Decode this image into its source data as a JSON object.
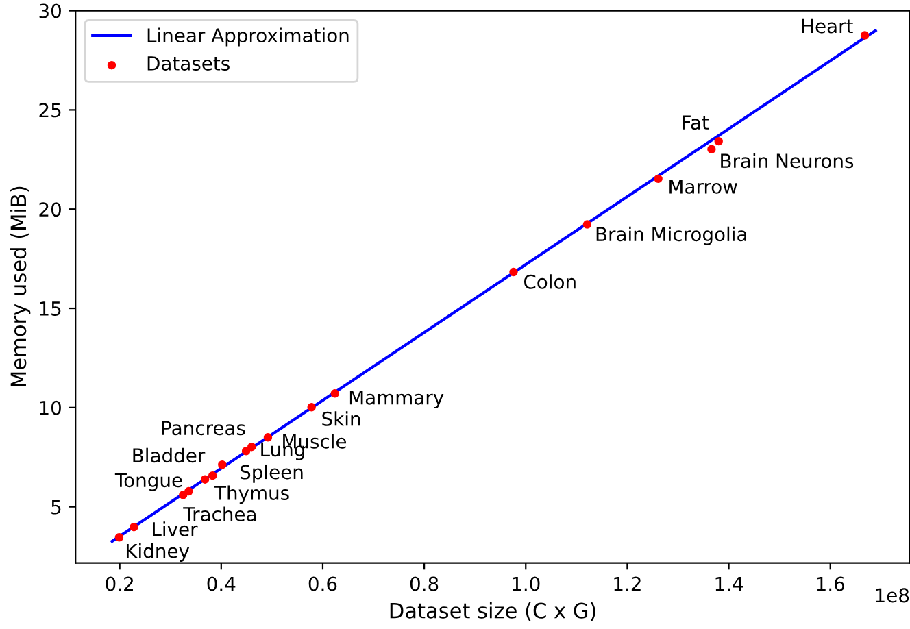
{
  "chart_data": {
    "type": "scatter",
    "xlabel": "Dataset size (C x G)",
    "ylabel": "Memory used (MiB)",
    "xlim": [
      0.113,
      1.757
    ],
    "ylim": [
      2.17,
      30
    ],
    "xticks": [
      0.2,
      0.4,
      0.6,
      0.8,
      {
        "value": 1,
        "label": "1.0"
      },
      1.2,
      1.4,
      1.6
    ],
    "yticks": [
      5,
      10,
      15,
      20,
      25,
      30
    ],
    "legend": "top left",
    "grid": false,
    "series": [
      {
        "name": "Linear Approximation",
        "type": "line",
        "color": "#0000ff",
        "marker": "none",
        "line_style": "solid",
        "x": [
          0.185,
          1.689
        ],
        "values": [
          3.26,
          29.0
        ]
      },
      {
        "name": "Datasets",
        "color": "#ff0000",
        "marker": "circle",
        "x": [
          0.199,
          0.228,
          0.325,
          0.336,
          0.368,
          0.383,
          0.402,
          0.449,
          0.46,
          0.492,
          0.578,
          0.624,
          0.976,
          1.121,
          1.261,
          1.366,
          1.38,
          1.668
        ],
        "values": [
          3.46,
          3.98,
          5.6,
          5.78,
          6.38,
          6.57,
          7.12,
          7.81,
          8.02,
          8.5,
          10.02,
          10.71,
          16.83,
          19.23,
          21.53,
          23.02,
          23.42,
          28.76
        ]
      }
    ],
    "annotations": [
      {
        "text": "Kidney",
        "x": 0.199,
        "y": 3.46
      },
      {
        "text": "Liver",
        "x": 0.228,
        "y": 3.98
      },
      {
        "text": "Trachea",
        "x": 0.325,
        "y": 5.6
      },
      {
        "text": "Tongue",
        "x": 0.336,
        "y": 5.78
      },
      {
        "text": "Thymus",
        "x": 0.368,
        "y": 6.38
      },
      {
        "text": "Spleen",
        "x": 0.383,
        "y": 6.57
      },
      {
        "text": "Bladder",
        "x": 0.402,
        "y": 7.12
      },
      {
        "text": "Lung",
        "x": 0.449,
        "y": 7.81
      },
      {
        "text": "Pancreas",
        "x": 0.46,
        "y": 8.02
      },
      {
        "text": "Muscle",
        "x": 0.492,
        "y": 8.5
      },
      {
        "text": "Skin",
        "x": 0.578,
        "y": 10.02
      },
      {
        "text": "Mammary",
        "x": 0.624,
        "y": 10.71
      },
      {
        "text": "Colon",
        "x": 0.976,
        "y": 16.83
      },
      {
        "text": "Brain Microgolia",
        "x": 1.121,
        "y": 19.23
      },
      {
        "text": "Marrow",
        "x": 1.261,
        "y": 21.53
      },
      {
        "text": "Brain Neurons",
        "x": 1.366,
        "y": 23.02
      },
      {
        "text": "Fat",
        "x": 1.38,
        "y": 23.42
      },
      {
        "text": "Heart",
        "x": 1.668,
        "y": 28.76
      },
      "1e8"
    ]
  }
}
